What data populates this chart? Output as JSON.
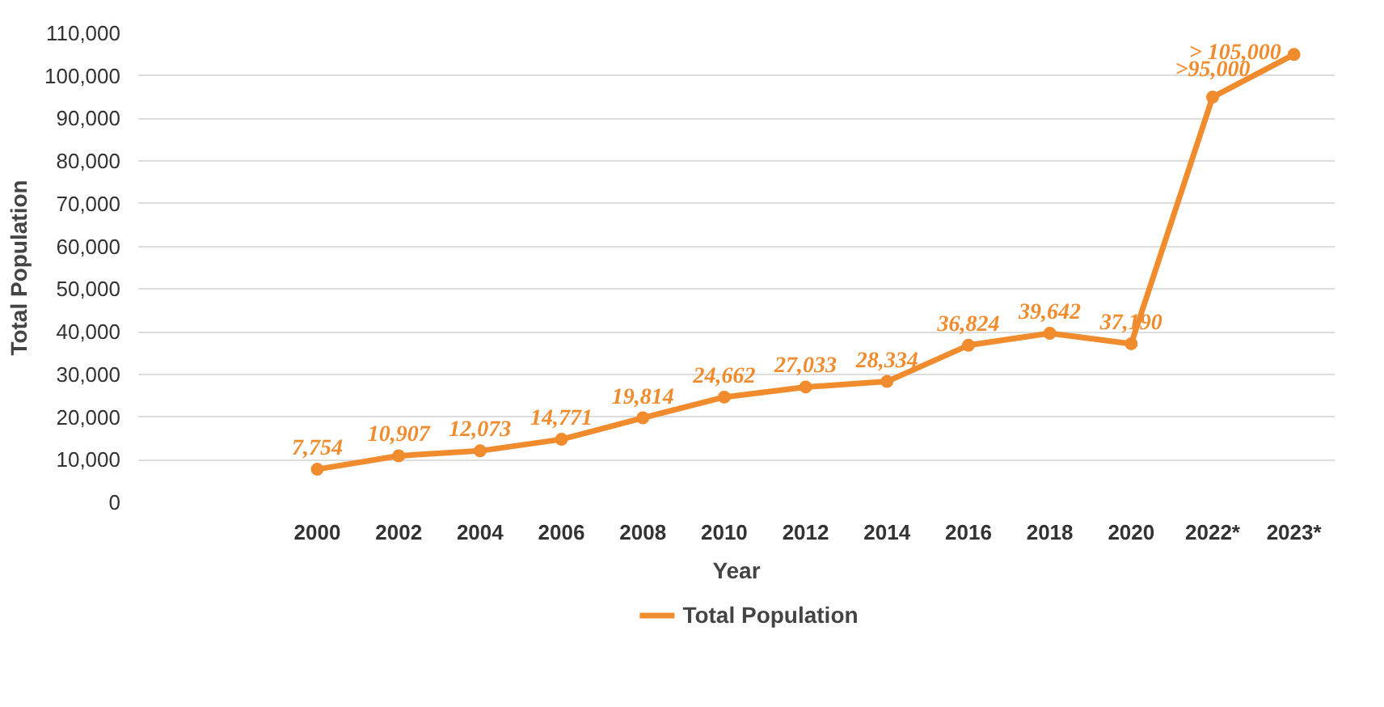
{
  "chart_data": {
    "type": "line",
    "xlabel": "Year",
    "ylabel": "Total Population",
    "categories": [
      "2000",
      "2002",
      "2004",
      "2006",
      "2008",
      "2010",
      "2012",
      "2014",
      "2016",
      "2018",
      "2020",
      "2022*",
      "2023*"
    ],
    "series": [
      {
        "name": "Total Population",
        "color": "#f08c2e",
        "values": [
          7754,
          10907,
          12073,
          14771,
          19814,
          24662,
          27033,
          28334,
          36824,
          39642,
          37190,
          95000,
          105000
        ],
        "value_labels": [
          "7,754",
          "10,907",
          "12,073",
          "14,771",
          "19,814",
          "24,662",
          "27,033",
          "28,334",
          "36,824",
          "39,642",
          "37,190",
          ">95,000",
          "> 105,000"
        ]
      }
    ],
    "ylim": [
      0,
      110000
    ],
    "yticks": [
      {
        "value": 0,
        "label": "0"
      },
      {
        "value": 10000,
        "label": "10,000"
      },
      {
        "value": 20000,
        "label": "20,000"
      },
      {
        "value": 30000,
        "label": "30,000"
      },
      {
        "value": 40000,
        "label": "40,000"
      },
      {
        "value": 50000,
        "label": "50,000"
      },
      {
        "value": 60000,
        "label": "60,000"
      },
      {
        "value": 70000,
        "label": "70,000"
      },
      {
        "value": 80000,
        "label": "80,000"
      },
      {
        "value": 90000,
        "label": "90,000"
      },
      {
        "value": 100000,
        "label": "100,000"
      },
      {
        "value": 110000,
        "label": "110,000"
      }
    ],
    "grid": "y",
    "legend": "bottom",
    "marker": "circle",
    "line_style": "solid"
  }
}
